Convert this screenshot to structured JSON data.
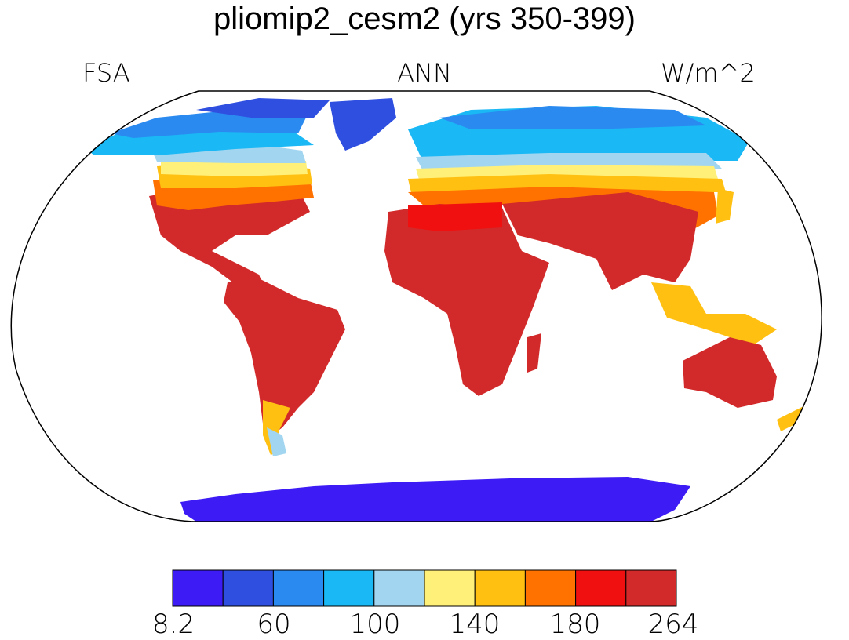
{
  "title": "pliomip2_cesm2 (yrs 350-399)",
  "left_label": "FSA",
  "center_label": "ANN",
  "right_label": "W/m^2",
  "colorbar": {
    "colors": [
      "#3d1bf5",
      "#2f4fe0",
      "#2a8af0",
      "#1ab8f5",
      "#a2d6f0",
      "#fff07a",
      "#ffc012",
      "#ff7200",
      "#f01010",
      "#d22a2a"
    ],
    "tick_labels": [
      "8.2",
      "60",
      "100",
      "140",
      "180",
      "264"
    ]
  }
}
